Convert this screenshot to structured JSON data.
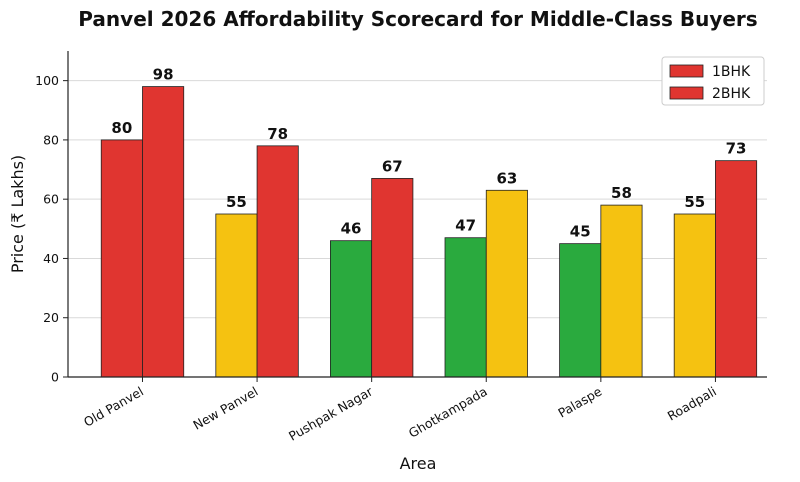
{
  "chart_data": {
    "type": "bar",
    "title": "Panvel 2026 Affordability Scorecard for Middle-Class Buyers",
    "xlabel": "Area",
    "ylabel": "Price (₹ Lakhs)",
    "categories": [
      "Old Panvel",
      "New Panvel",
      "Pushpak Nagar",
      "Ghotkampada",
      "Palaspe",
      "Roadpali"
    ],
    "ylim": [
      0,
      110
    ],
    "yticks": [
      0,
      20,
      40,
      60,
      80,
      100
    ],
    "grid": "horizontal",
    "legend_position": "top-right",
    "series": [
      {
        "name": "1BHK",
        "values": [
          80,
          55,
          46,
          47,
          45,
          55
        ],
        "bar_colors": [
          "#e03530",
          "#f5c211",
          "#2aaa3e",
          "#2aaa3e",
          "#2aaa3e",
          "#f5c211"
        ]
      },
      {
        "name": "2BHK",
        "values": [
          98,
          78,
          67,
          63,
          58,
          73
        ],
        "bar_colors": [
          "#e03530",
          "#e03530",
          "#e03530",
          "#f5c211",
          "#f5c211",
          "#e03530"
        ]
      }
    ],
    "legend_color": "#e03530"
  }
}
